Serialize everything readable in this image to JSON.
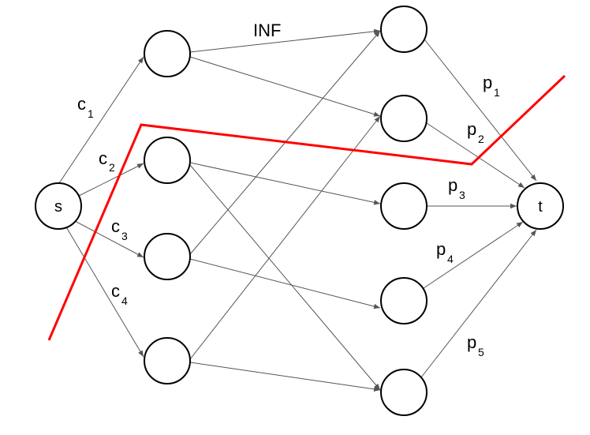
{
  "nodes": {
    "s": "s",
    "t": "t"
  },
  "labels": {
    "inf": "INF",
    "c": "c",
    "p": "p",
    "c1_sub": "1",
    "c2_sub": "2",
    "c3_sub": "3",
    "c4_sub": "4",
    "p1_sub": "1",
    "p2_sub": "2",
    "p3_sub": "3",
    "p4_sub": "4",
    "p5_sub": "5"
  },
  "colors": {
    "cut": "#ff0000",
    "edge": "#555555",
    "node_stroke": "#000000"
  }
}
